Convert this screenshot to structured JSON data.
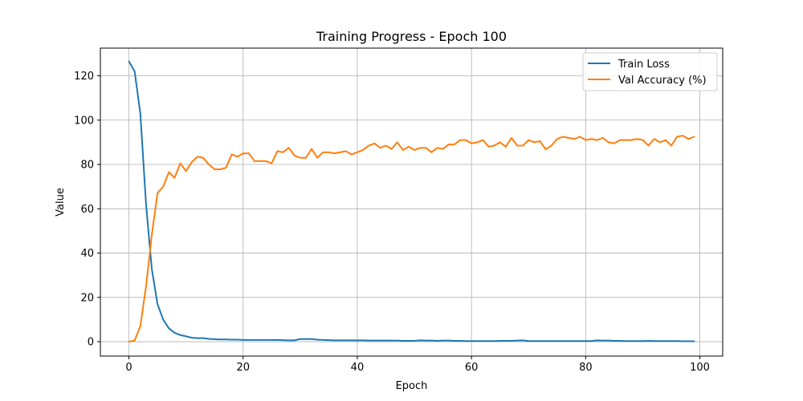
{
  "chart_data": {
    "type": "line",
    "title": "Training Progress - Epoch 100",
    "xlabel": "Epoch",
    "ylabel": "Value",
    "xlim": [
      -5,
      104
    ],
    "ylim": [
      -6.5,
      132.5
    ],
    "xticks": [
      0,
      20,
      40,
      60,
      80,
      100
    ],
    "yticks": [
      0,
      20,
      40,
      60,
      80,
      100,
      120
    ],
    "grid": true,
    "legend_position": "top-right",
    "series": [
      {
        "name": "Train Loss",
        "color": "#1f77b4",
        "values": [
          126.5,
          122,
          103,
          62,
          33,
          17,
          10,
          6,
          4,
          3,
          2.4,
          1.8,
          1.6,
          1.6,
          1.3,
          1.1,
          1.0,
          1.0,
          0.9,
          0.9,
          0.8,
          0.8,
          0.8,
          0.8,
          0.8,
          0.8,
          0.8,
          0.7,
          0.6,
          0.6,
          1.2,
          1.2,
          1.2,
          0.9,
          0.8,
          0.7,
          0.6,
          0.6,
          0.6,
          0.6,
          0.6,
          0.6,
          0.5,
          0.5,
          0.5,
          0.5,
          0.5,
          0.5,
          0.4,
          0.4,
          0.4,
          0.6,
          0.5,
          0.5,
          0.4,
          0.5,
          0.5,
          0.4,
          0.4,
          0.3,
          0.3,
          0.3,
          0.3,
          0.3,
          0.3,
          0.4,
          0.4,
          0.4,
          0.5,
          0.6,
          0.3,
          0.3,
          0.3,
          0.3,
          0.3,
          0.3,
          0.3,
          0.3,
          0.3,
          0.3,
          0.3,
          0.3,
          0.6,
          0.5,
          0.5,
          0.4,
          0.4,
          0.3,
          0.3,
          0.3,
          0.3,
          0.4,
          0.3,
          0.3,
          0.3,
          0.3,
          0.3,
          0.2,
          0.2,
          0.2
        ]
      },
      {
        "name": "Val Accuracy (%)",
        "color": "#ff7f0e",
        "values": [
          0,
          0.5,
          7,
          25,
          48,
          67,
          70,
          76.5,
          74,
          80.5,
          77,
          81,
          83.5,
          83,
          80,
          77.8,
          77.8,
          78.5,
          84.5,
          83.5,
          85,
          85,
          81.5,
          81.5,
          81.5,
          80.5,
          86,
          85.5,
          87.5,
          84,
          83,
          83,
          87,
          83,
          85.5,
          85.5,
          85,
          85.5,
          86,
          84.5,
          85.5,
          86.5,
          88.5,
          89.5,
          87.5,
          88.5,
          87,
          90,
          86.5,
          88,
          86.5,
          87.5,
          87.5,
          85.5,
          87.5,
          87,
          89,
          89,
          91,
          91,
          89.5,
          90,
          91,
          88,
          88.5,
          90,
          88,
          92,
          88.5,
          88.5,
          91,
          90,
          90.5,
          86.8,
          88.5,
          91.5,
          92.5,
          92,
          91.5,
          92.5,
          91,
          91.5,
          91,
          92,
          90,
          89.5,
          91,
          91,
          91,
          91.5,
          91,
          88.5,
          91.5,
          90,
          91,
          88.5,
          92.5,
          93,
          91.5,
          92.5
        ]
      }
    ]
  }
}
